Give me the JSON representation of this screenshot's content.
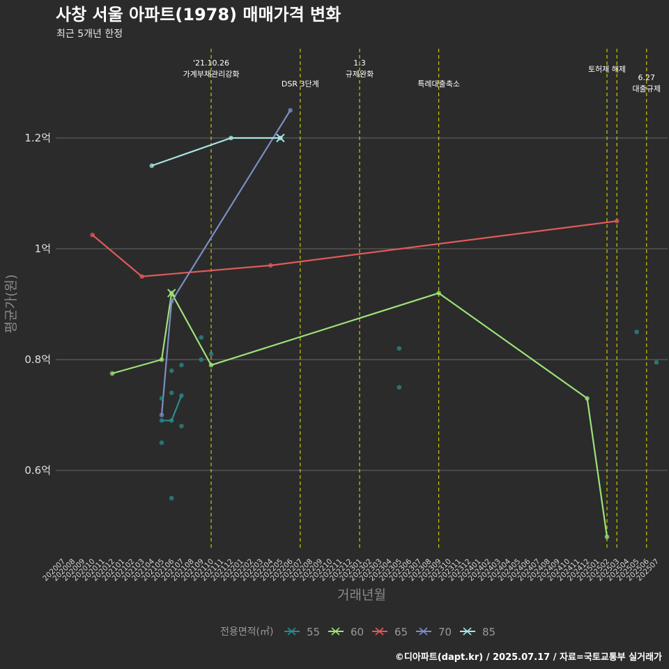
{
  "chart_data": {
    "type": "line",
    "title": "사창 서울 아파트(1978) 매매가격 변화",
    "subtitle": "최근 5개년 한정",
    "xlabel": "거래년월",
    "ylabel": "평균가(원)",
    "caption": "©디아파트(dapt.kr) / 2025.07.17 / 자료=국토교통부 실거래가",
    "legend_title": "전용면적(㎡)",
    "legend_position": "bottom",
    "grid": true,
    "x_categories": [
      "202007",
      "202008",
      "202009",
      "202010",
      "202011",
      "202012",
      "202101",
      "202102",
      "202103",
      "202104",
      "202105",
      "202106",
      "202107",
      "202108",
      "202109",
      "202110",
      "202111",
      "202112",
      "202201",
      "202202",
      "202203",
      "202204",
      "202205",
      "202206",
      "202207",
      "202208",
      "202209",
      "202210",
      "202211",
      "202212",
      "202301",
      "202302",
      "202303",
      "202304",
      "202305",
      "202306",
      "202307",
      "202308",
      "202309",
      "202310",
      "202311",
      "202312",
      "202401",
      "202402",
      "202403",
      "202404",
      "202405",
      "202406",
      "202407",
      "202408",
      "202409",
      "202410",
      "202411",
      "202412",
      "202501",
      "202502",
      "202503",
      "202504",
      "202505",
      "202506",
      "202507"
    ],
    "y_ticks": [
      {
        "value": 0.6,
        "label": "0.6억"
      },
      {
        "value": 0.8,
        "label": "0.8억"
      },
      {
        "value": 1.0,
        "label": "1억"
      },
      {
        "value": 1.2,
        "label": "1.2억"
      }
    ],
    "ylim": [
      0.45,
      1.33
    ],
    "series": [
      {
        "name": "55",
        "color": "#2a8c8c",
        "line": [
          [
            "202105",
            0.69
          ],
          [
            "202106",
            0.69
          ],
          [
            "202107",
            0.735
          ]
        ],
        "points": [
          [
            "202105",
            0.73
          ],
          [
            "202105",
            0.65
          ],
          [
            "202106",
            0.78
          ],
          [
            "202106",
            0.74
          ],
          [
            "202106",
            0.55
          ],
          [
            "202107",
            0.79
          ],
          [
            "202107",
            0.68
          ],
          [
            "202109",
            0.84
          ],
          [
            "202109",
            0.8
          ],
          [
            "202110",
            0.81
          ],
          [
            "202305",
            0.82
          ],
          [
            "202305",
            0.75
          ],
          [
            "202505",
            0.85
          ],
          [
            "202507",
            0.795
          ]
        ]
      },
      {
        "name": "60",
        "color": "#9ee27a",
        "line": [
          [
            "202012",
            0.775
          ],
          [
            "202105",
            0.8
          ],
          [
            "202106",
            0.92
          ],
          [
            "202110",
            0.79
          ],
          [
            "202309",
            0.92
          ],
          [
            "202412",
            0.73
          ],
          [
            "202502",
            0.48
          ]
        ],
        "points": []
      },
      {
        "name": "65",
        "color": "#e05a5a",
        "line": [
          [
            "202010",
            1.025
          ],
          [
            "202103",
            0.95
          ],
          [
            "202204",
            0.97
          ],
          [
            "202503",
            1.05
          ]
        ],
        "points": []
      },
      {
        "name": "70",
        "color": "#7b8fc4",
        "line": [
          [
            "202105",
            0.7
          ],
          [
            "202106",
            0.905
          ],
          [
            "202206",
            1.25
          ]
        ],
        "points": []
      },
      {
        "name": "85",
        "color": "#a8e6e6",
        "line": [
          [
            "202104",
            1.15
          ],
          [
            "202112",
            1.2
          ],
          [
            "202205",
            1.2
          ]
        ],
        "points": []
      }
    ],
    "cross_markers": [
      {
        "series": "60",
        "x": "202106",
        "y": 0.92
      },
      {
        "series": "85",
        "x": "202205",
        "y": 1.2
      }
    ],
    "events": [
      {
        "x": "202110",
        "lines": [
          "'21.10.26",
          "가계부채관리강화"
        ]
      },
      {
        "x": "202207",
        "lines": [
          "DSR 3단계"
        ]
      },
      {
        "x": "202301",
        "lines": [
          "1.3",
          "규제완화"
        ]
      },
      {
        "x": "202309",
        "lines": [
          "특례대출축소"
        ]
      },
      {
        "x": "202502",
        "lines": [
          "토허제 해제"
        ]
      },
      {
        "x": "202503",
        "lines": []
      },
      {
        "x": "202506",
        "lines": [
          "6.27",
          "대출규제"
        ]
      }
    ]
  },
  "colors": {
    "background": "#2b2b2b",
    "grid": "#6a6a6a",
    "event_line": "#d8d800"
  }
}
